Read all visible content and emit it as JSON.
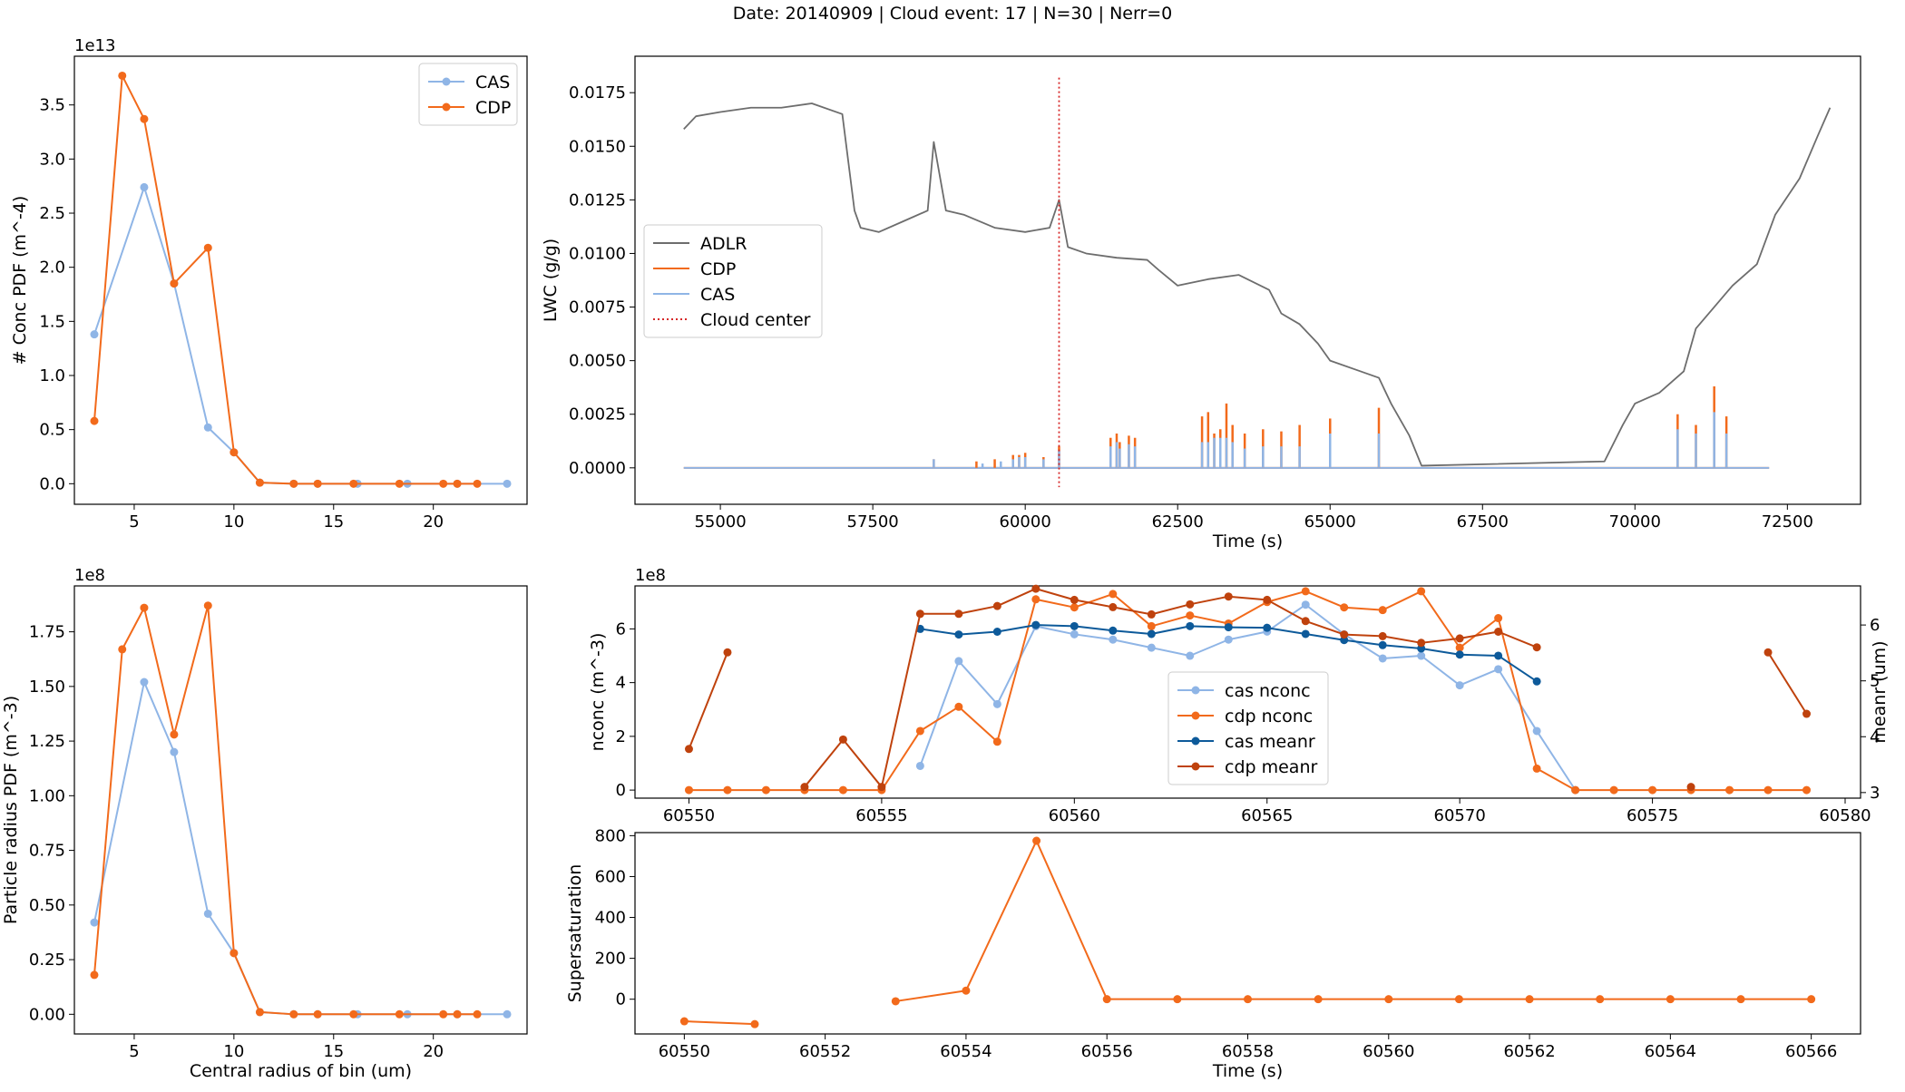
{
  "suptitle": "Date: 20140909 | Cloud event: 17 | N=30 | Nerr=0",
  "colors": {
    "cas": "#8fb5e6",
    "cdp": "#f26a1b",
    "adlr": "#6d6d6d",
    "center": "#d62728",
    "cas_meanr": "#0d5a9a",
    "cdp_meanr": "#bf420d"
  },
  "chart_data": [
    {
      "id": "conc-pdf",
      "type": "line",
      "xlabel": "",
      "ylabel": "# Conc PDF (m^-4)",
      "offset_text": "1e13",
      "xlim": [
        2.0,
        24.7
      ],
      "ylim": [
        -0.19,
        3.95
      ],
      "xticks": [
        5,
        10,
        15,
        20
      ],
      "yticks": [
        0.0,
        0.5,
        1.0,
        1.5,
        2.0,
        2.5,
        3.0,
        3.5
      ],
      "ytick_labels": [
        "0.0",
        "0.5",
        "1.0",
        "1.5",
        "2.0",
        "2.5",
        "3.0",
        "3.5"
      ],
      "legend": {
        "position": "upper right",
        "entries": [
          "CAS",
          "CDP"
        ]
      },
      "series": [
        {
          "name": "CAS",
          "color": "#8fb5e6",
          "marker": true,
          "x": [
            3.0,
            5.5,
            7.0,
            8.7,
            10.0,
            11.3,
            13.0,
            14.2,
            16.2,
            18.7,
            21.2,
            23.7
          ],
          "y": [
            1.38,
            2.74,
            1.85,
            0.52,
            0.29,
            0.01,
            0.0,
            0.0,
            0.0,
            0.0,
            0.0,
            0.0
          ]
        },
        {
          "name": "CDP",
          "color": "#f26a1b",
          "marker": true,
          "x": [
            3.0,
            4.4,
            5.5,
            7.0,
            8.7,
            10.0,
            11.3,
            13.0,
            14.2,
            16.0,
            18.3,
            20.5,
            21.2,
            22.2
          ],
          "y": [
            0.58,
            3.77,
            3.37,
            1.85,
            2.18,
            0.29,
            0.01,
            0.0,
            0.0,
            0.0,
            0.0,
            0.0,
            0.0,
            0.0
          ]
        }
      ]
    },
    {
      "id": "lwc",
      "type": "line",
      "xlabel": "Time (s)",
      "ylabel": "LWC (g/g)",
      "xlim": [
        53600,
        73700
      ],
      "ylim": [
        -0.0017,
        0.0192
      ],
      "xticks": [
        55000,
        57500,
        60000,
        62500,
        65000,
        67500,
        70000,
        72500
      ],
      "yticks": [
        0.0,
        0.0025,
        0.005,
        0.0075,
        0.01,
        0.0125,
        0.015,
        0.0175
      ],
      "ytick_labels": [
        "0.0000",
        "0.0025",
        "0.0050",
        "0.0075",
        "0.0100",
        "0.0125",
        "0.0150",
        "0.0175"
      ],
      "legend": {
        "position": "center left",
        "entries": [
          "ADLR",
          "CDP",
          "CAS",
          "Cloud center"
        ]
      },
      "cloud_center_x": 60555,
      "series": [
        {
          "name": "ADLR",
          "color": "#6d6d6d",
          "x": [
            54400,
            54600,
            55000,
            55500,
            56000,
            56500,
            57000,
            57200,
            57300,
            57600,
            58000,
            58400,
            58500,
            58700,
            59000,
            59500,
            60000,
            60400,
            60555,
            60700,
            61000,
            61500,
            62000,
            62200,
            62500,
            63000,
            63500,
            64000,
            64200,
            64500,
            64800,
            65000,
            65500,
            65800,
            66000,
            66300,
            66500,
            69500,
            69800,
            70000,
            70400,
            70800,
            71000,
            71300,
            71600,
            72000,
            72300,
            72700,
            73000,
            73200
          ],
          "y": [
            0.0158,
            0.0164,
            0.0166,
            0.0168,
            0.0168,
            0.017,
            0.0165,
            0.012,
            0.0112,
            0.011,
            0.0115,
            0.012,
            0.0152,
            0.012,
            0.0118,
            0.0112,
            0.011,
            0.0112,
            0.0125,
            0.0103,
            0.01,
            0.0098,
            0.0097,
            0.0092,
            0.0085,
            0.0088,
            0.009,
            0.0083,
            0.0072,
            0.0067,
            0.0058,
            0.005,
            0.0045,
            0.0042,
            0.003,
            0.0015,
            0.0001,
            0.0003,
            0.002,
            0.003,
            0.0035,
            0.0045,
            0.0065,
            0.0075,
            0.0085,
            0.0095,
            0.0118,
            0.0135,
            0.0155,
            0.0168
          ]
        },
        {
          "name": "CDP",
          "color": "#f26a1b",
          "spikes": true,
          "x": [
            58500,
            59200,
            59500,
            59800,
            59900,
            60000,
            60300,
            60555,
            61400,
            61500,
            61550,
            61700,
            61800,
            62900,
            63000,
            63100,
            63200,
            63300,
            63400,
            63600,
            63900,
            64200,
            64500,
            65000,
            65800,
            70700,
            71000,
            71300,
            71500
          ],
          "y": [
            0.0004,
            0.0003,
            0.0004,
            0.0006,
            0.0006,
            0.0007,
            0.0005,
            0.001,
            0.0014,
            0.0016,
            0.0012,
            0.0015,
            0.0014,
            0.0024,
            0.0026,
            0.0016,
            0.0018,
            0.003,
            0.002,
            0.0016,
            0.0018,
            0.0017,
            0.002,
            0.0023,
            0.0028,
            0.0025,
            0.002,
            0.0038,
            0.0024
          ]
        },
        {
          "name": "CAS",
          "color": "#8fb5e6",
          "spikes": true,
          "x": [
            58500,
            59300,
            59600,
            59800,
            59900,
            60000,
            60300,
            60555,
            61400,
            61500,
            61550,
            61700,
            61800,
            62900,
            63000,
            63100,
            63200,
            63300,
            63400,
            63600,
            63900,
            64200,
            64500,
            65000,
            65800,
            70700,
            71000,
            71300,
            71500
          ],
          "y": [
            0.0004,
            0.0002,
            0.0003,
            0.0004,
            0.0005,
            0.0005,
            0.0004,
            0.0008,
            0.001,
            0.0012,
            0.0009,
            0.0011,
            0.001,
            0.0012,
            0.0012,
            0.0014,
            0.0014,
            0.0014,
            0.0012,
            0.0009,
            0.001,
            0.001,
            0.001,
            0.0016,
            0.0016,
            0.0018,
            0.0016,
            0.0026,
            0.0016
          ]
        }
      ]
    },
    {
      "id": "radius-pdf",
      "type": "line",
      "xlabel": "Central radius of bin (um)",
      "ylabel": "Particle radius PDF (m^-3)",
      "offset_text": "1e8",
      "xlim": [
        2.0,
        24.7
      ],
      "ylim": [
        -0.09,
        1.96
      ],
      "xticks": [
        5,
        10,
        15,
        20
      ],
      "yticks": [
        0.0,
        0.25,
        0.5,
        0.75,
        1.0,
        1.25,
        1.5,
        1.75
      ],
      "ytick_labels": [
        "0.00",
        "0.25",
        "0.50",
        "0.75",
        "1.00",
        "1.25",
        "1.50",
        "1.75"
      ],
      "series": [
        {
          "name": "CAS",
          "color": "#8fb5e6",
          "marker": true,
          "x": [
            3.0,
            5.5,
            7.0,
            8.7,
            10.0,
            11.3,
            13.0,
            14.2,
            16.2,
            18.7,
            21.2,
            23.7
          ],
          "y": [
            0.42,
            1.52,
            1.2,
            0.46,
            0.28,
            0.01,
            0.0,
            0.0,
            0.0,
            0.0,
            0.0,
            0.0
          ]
        },
        {
          "name": "CDP",
          "color": "#f26a1b",
          "marker": true,
          "x": [
            3.0,
            4.4,
            5.5,
            7.0,
            8.7,
            10.0,
            11.3,
            13.0,
            14.2,
            16.0,
            18.3,
            20.5,
            21.2,
            22.2
          ],
          "y": [
            0.18,
            1.67,
            1.86,
            1.28,
            1.87,
            0.28,
            0.01,
            0.0,
            0.0,
            0.0,
            0.0,
            0.0,
            0.0,
            0.0
          ]
        }
      ]
    },
    {
      "id": "nconc-meanr",
      "type": "line",
      "xlabel": "",
      "ylabel": "nconc (m^-3)",
      "ylabel_right": "meanr (um)",
      "offset_text": "1e8",
      "xlim": [
        60548.6,
        60580.4
      ],
      "ylim": [
        -0.3,
        7.6
      ],
      "ylim_right": [
        2.9,
        6.7
      ],
      "xticks": [
        60550,
        60555,
        60560,
        60565,
        60570,
        60575,
        60580
      ],
      "yticks": [
        0,
        2,
        4,
        6
      ],
      "ytick_labels": [
        "0",
        "2",
        "4",
        "6"
      ],
      "yticks_right": [
        3,
        4,
        5,
        6
      ],
      "legend": {
        "position": "center",
        "entries": [
          "cas nconc",
          "cdp nconc",
          "cas meanr",
          "cdp meanr"
        ]
      },
      "series": [
        {
          "name": "cas nconc",
          "color": "#8fb5e6",
          "axis": "left",
          "x": [
            60556,
            60557,
            60558,
            60559,
            60560,
            60561,
            60562,
            60563,
            60564,
            60565,
            60566,
            60567,
            60568,
            60569,
            60570,
            60571,
            60572,
            60573
          ],
          "y": [
            0.9,
            4.8,
            3.2,
            6.1,
            5.8,
            5.6,
            5.3,
            5.0,
            5.6,
            5.9,
            6.9,
            5.8,
            4.9,
            5.0,
            3.9,
            4.5,
            2.2,
            0.0
          ]
        },
        {
          "name": "cdp nconc",
          "color": "#f26a1b",
          "axis": "left",
          "x": [
            60550,
            60551,
            60552,
            60553,
            60554,
            60555,
            60556,
            60557,
            60558,
            60559,
            60560,
            60561,
            60562,
            60563,
            60564,
            60565,
            60566,
            60567,
            60568,
            60569,
            60570,
            60571,
            60572,
            60573,
            60574,
            60575,
            60576,
            60577,
            60578,
            60579
          ],
          "y": [
            0,
            0,
            0,
            0,
            0,
            0,
            2.2,
            3.1,
            1.8,
            7.1,
            6.8,
            7.3,
            6.1,
            6.5,
            6.2,
            7.0,
            7.4,
            6.8,
            6.7,
            7.4,
            5.3,
            6.4,
            0.8,
            0,
            0,
            0,
            0,
            0,
            0,
            0
          ]
        },
        {
          "name": "cas meanr",
          "color": "#0d5a9a",
          "axis": "right",
          "x": [
            60556,
            60557,
            60558,
            60559,
            60560,
            60561,
            60562,
            60563,
            60564,
            60565,
            60566,
            60567,
            60568,
            60569,
            60570,
            60571,
            60572
          ],
          "y": [
            5.93,
            5.83,
            5.88,
            6.0,
            5.98,
            5.9,
            5.84,
            5.98,
            5.96,
            5.95,
            5.84,
            5.73,
            5.64,
            5.58,
            5.47,
            5.45,
            4.99
          ]
        },
        {
          "name": "cdp meanr",
          "color": "#bf420d",
          "axis": "right",
          "x": [
            60550,
            60551,
            null,
            60553,
            60554,
            60555,
            60556,
            60557,
            60558,
            60559,
            60560,
            60561,
            60562,
            60563,
            60564,
            60565,
            60566,
            60567,
            60568,
            60569,
            60570,
            60571,
            60572,
            null,
            60576,
            null,
            60578,
            60579
          ],
          "y": [
            3.78,
            5.51,
            null,
            3.1,
            3.95,
            3.1,
            6.2,
            6.2,
            6.34,
            6.65,
            6.45,
            6.32,
            6.19,
            6.37,
            6.51,
            6.45,
            6.07,
            5.83,
            5.8,
            5.68,
            5.76,
            5.88,
            5.6,
            null,
            3.1,
            null,
            5.51,
            4.41
          ]
        }
      ]
    },
    {
      "id": "supersaturation",
      "type": "line",
      "xlabel": "Time (s)",
      "ylabel": "Supersaturation",
      "xlim": [
        60549.3,
        60566.7
      ],
      "ylim": [
        -170,
        815
      ],
      "xticks": [
        60550,
        60552,
        60554,
        60556,
        60558,
        60560,
        60562,
        60564,
        60566
      ],
      "yticks": [
        0,
        200,
        400,
        600,
        800
      ],
      "ytick_labels": [
        "0",
        "200",
        "400",
        "600",
        "800"
      ],
      "series": [
        {
          "name": "Supersaturation",
          "color": "#f26a1b",
          "x": [
            60550,
            60551,
            null,
            60553,
            60554,
            60555,
            60556,
            60557,
            60558,
            60559,
            60560,
            60561,
            60562,
            60563,
            60564,
            60565,
            60566
          ],
          "y": [
            -108,
            -122,
            null,
            -10,
            42,
            775,
            0,
            0,
            0,
            0,
            0,
            0,
            0,
            0,
            0,
            0,
            0
          ]
        }
      ]
    }
  ]
}
